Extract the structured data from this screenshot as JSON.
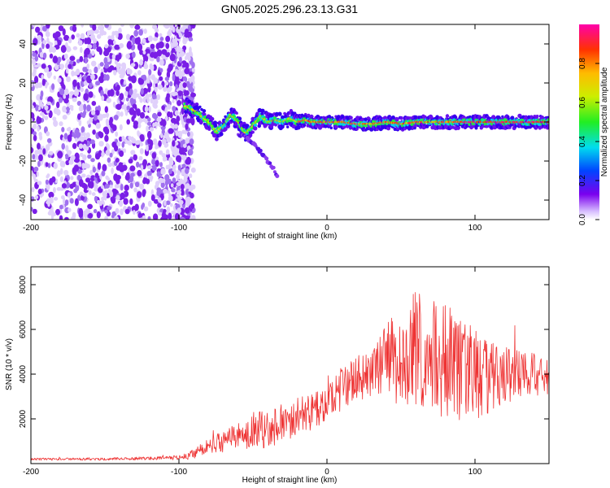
{
  "title": "GN05.2025.296.23.13.G31",
  "chart_data": [
    {
      "type": "heatmap",
      "xlabel": "Height of straight line (km)",
      "ylabel": "Frequency (Hz)",
      "xlim": [
        -200,
        150
      ],
      "ylim": [
        -50,
        50
      ],
      "xticks": [
        -200,
        -100,
        0,
        100
      ],
      "yticks": [
        -40,
        -20,
        0,
        20,
        40
      ],
      "colorbar": {
        "label": "Normalized spectral amplitude",
        "range": [
          0,
          1
        ],
        "ticks": [
          0.0,
          0.2,
          0.4,
          0.6,
          0.8
        ]
      },
      "ridge": {
        "x": [
          -95,
          -88,
          -80,
          -75,
          -70,
          -65,
          -60,
          -55,
          -50,
          -45,
          -40,
          -35,
          -30,
          -25,
          -20,
          -15,
          -10,
          -5,
          0,
          10,
          20,
          30,
          40,
          50,
          60,
          70,
          80,
          90,
          100,
          110,
          120,
          130,
          140,
          150
        ],
        "y": [
          8,
          5,
          0,
          -5,
          -2,
          4,
          0,
          -6,
          -2,
          3,
          0,
          1,
          0,
          2,
          0,
          1,
          0,
          0,
          0,
          0,
          -1,
          -1,
          0,
          -1,
          0,
          0,
          0,
          0,
          0,
          0,
          0,
          0,
          0,
          0
        ]
      },
      "branch": {
        "x": [
          -60,
          -55,
          -50,
          -45,
          -40,
          -36,
          -33
        ],
        "y": [
          -6,
          -8,
          -11,
          -15,
          -20,
          -24,
          -29
        ]
      },
      "noise_region_x": [
        -200,
        -90
      ]
    },
    {
      "type": "line",
      "xlabel": "Height of straight line (km)",
      "ylabel": "SNR (10 * v/v)",
      "xlim": [
        -200,
        150
      ],
      "ylim": [
        0,
        8800
      ],
      "xticks": [
        -200,
        -100,
        0,
        100
      ],
      "yticks": [
        2000,
        4000,
        6000,
        8000
      ],
      "color": "#ee3333",
      "envelope": {
        "x": [
          -200,
          -150,
          -110,
          -95,
          -85,
          -70,
          -55,
          -40,
          -25,
          -10,
          0,
          10,
          25,
          40,
          50,
          60,
          70,
          80,
          90,
          100,
          110,
          120,
          130,
          150
        ],
        "mid": [
          200,
          200,
          250,
          300,
          600,
          1000,
          1300,
          1600,
          2000,
          2300,
          2700,
          3300,
          4000,
          4500,
          4800,
          5000,
          4800,
          4500,
          4200,
          4000,
          3800,
          4000,
          4000,
          4000
        ],
        "amp": [
          50,
          60,
          80,
          150,
          300,
          500,
          700,
          900,
          900,
          800,
          800,
          900,
          1100,
          1700,
          2300,
          2800,
          2500,
          2800,
          2400,
          2100,
          1600,
          1300,
          1100,
          900
        ]
      }
    }
  ]
}
